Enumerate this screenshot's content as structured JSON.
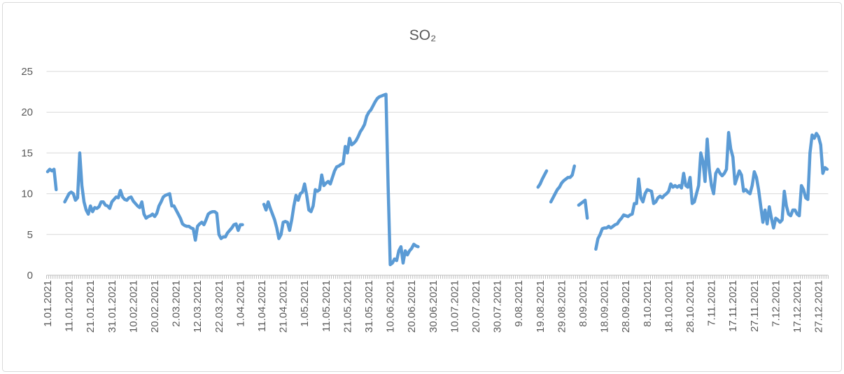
{
  "chart_data": {
    "type": "line",
    "title": "SO₂",
    "categories": [
      "1.01.2021",
      null,
      null,
      null,
      null,
      null,
      null,
      null,
      null,
      null,
      "11.01.2021",
      null,
      null,
      null,
      null,
      null,
      null,
      null,
      null,
      null,
      "21.01.2021",
      null,
      null,
      null,
      null,
      null,
      null,
      null,
      null,
      null,
      "31.01.2021",
      null,
      null,
      null,
      null,
      null,
      null,
      null,
      null,
      null,
      "10.02.2021",
      null,
      null,
      null,
      null,
      null,
      null,
      null,
      null,
      null,
      "20.02.2021",
      null,
      null,
      null,
      null,
      null,
      null,
      null,
      null,
      null,
      "2.03.2021",
      null,
      null,
      null,
      null,
      null,
      null,
      null,
      null,
      null,
      "12.03.2021",
      null,
      null,
      null,
      null,
      null,
      null,
      null,
      null,
      null,
      "22.03.2021",
      null,
      null,
      null,
      null,
      null,
      null,
      null,
      null,
      null,
      "1.04.2021",
      null,
      null,
      null,
      null,
      null,
      null,
      null,
      null,
      null,
      "11.04.2021",
      null,
      null,
      null,
      null,
      null,
      null,
      null,
      null,
      null,
      "21.04.2021",
      null,
      null,
      null,
      null,
      null,
      null,
      null,
      null,
      null,
      "1.05.2021",
      null,
      null,
      null,
      null,
      null,
      null,
      null,
      null,
      null,
      "11.05.2021",
      null,
      null,
      null,
      null,
      null,
      null,
      null,
      null,
      null,
      "21.05.2021",
      null,
      null,
      null,
      null,
      null,
      null,
      null,
      null,
      null,
      "31.05.2021",
      null,
      null,
      null,
      null,
      null,
      null,
      null,
      null,
      null,
      "10.06.2021",
      null,
      null,
      null,
      null,
      null,
      null,
      null,
      null,
      null,
      "20.06.2021",
      null,
      null,
      null,
      null,
      null,
      null,
      null,
      null,
      null,
      "30.06.2021",
      null,
      null,
      null,
      null,
      null,
      null,
      null,
      null,
      null,
      "10.07.2021",
      null,
      null,
      null,
      null,
      null,
      null,
      null,
      null,
      null,
      "20.07.2021",
      null,
      null,
      null,
      null,
      null,
      null,
      null,
      null,
      null,
      "30.07.2021",
      null,
      null,
      null,
      null,
      null,
      null,
      null,
      null,
      null,
      "9.08.2021",
      null,
      null,
      null,
      null,
      null,
      null,
      null,
      null,
      null,
      "19.08.2021",
      null,
      null,
      null,
      null,
      null,
      null,
      null,
      null,
      null,
      "29.08.2021",
      null,
      null,
      null,
      null,
      null,
      null,
      null,
      null,
      null,
      "8.09.2021",
      null,
      null,
      null,
      null,
      null,
      null,
      null,
      null,
      null,
      "18.09.2021",
      null,
      null,
      null,
      null,
      null,
      null,
      null,
      null,
      null,
      "28.09.2021",
      null,
      null,
      null,
      null,
      null,
      null,
      null,
      null,
      null,
      "8.10.2021",
      null,
      null,
      null,
      null,
      null,
      null,
      null,
      null,
      null,
      "18.10.2021",
      null,
      null,
      null,
      null,
      null,
      null,
      null,
      null,
      null,
      "28.10.2021",
      null,
      null,
      null,
      null,
      null,
      null,
      null,
      null,
      null,
      "7.11.2021",
      null,
      null,
      null,
      null,
      null,
      null,
      null,
      null,
      null,
      "17.11.2021",
      null,
      null,
      null,
      null,
      null,
      null,
      null,
      null,
      null,
      "27.11.2021",
      null,
      null,
      null,
      null,
      null,
      null,
      null,
      null,
      null,
      "7.12.2021",
      null,
      null,
      null,
      null,
      null,
      null,
      null,
      null,
      null,
      "17.12.2021",
      null,
      null,
      null,
      null,
      null,
      null,
      null,
      null,
      null,
      "27.12.2021",
      null,
      null,
      null,
      null
    ],
    "values": [
      12.7,
      13,
      12.8,
      13,
      10.5,
      null,
      null,
      null,
      9,
      9.5,
      10,
      10.2,
      10,
      9.2,
      9.5,
      15,
      11,
      9,
      8,
      7.5,
      8.5,
      7.8,
      8.3,
      8.2,
      8.4,
      9,
      9,
      8.6,
      8.5,
      8.2,
      9,
      9.3,
      9.6,
      9.5,
      10.4,
      9.6,
      9.3,
      9.2,
      9.5,
      9.6,
      9.1,
      8.8,
      8.5,
      8.3,
      9,
      7.5,
      7,
      7.2,
      7.3,
      7.5,
      7.2,
      7.6,
      8.5,
      9,
      9.6,
      9.8,
      9.9,
      10,
      8.5,
      8.5,
      8,
      7.5,
      7,
      6.3,
      6.1,
      6,
      6,
      5.8,
      5.7,
      4.3,
      6,
      6.3,
      6.5,
      6.2,
      6.8,
      7.5,
      7.7,
      7.8,
      7.8,
      7.6,
      5,
      4.5,
      4.7,
      4.7,
      5.2,
      5.5,
      5.8,
      6.2,
      6.3,
      5.5,
      6.2,
      6.2,
      null,
      null,
      null,
      null,
      null,
      null,
      null,
      null,
      null,
      8.7,
      8,
      9,
      8.2,
      7.5,
      6.8,
      5.8,
      4.5,
      5,
      6.5,
      6.6,
      6.5,
      5.5,
      6.8,
      8.5,
      9.8,
      9.2,
      10,
      10.2,
      11.2,
      9.8,
      8,
      7.8,
      8.5,
      10.5,
      10.3,
      10.5,
      12.3,
      11,
      11.3,
      11.5,
      11.2,
      12,
      12.8,
      13.3,
      13.4,
      13.6,
      13.7,
      15.8,
      15,
      16.8,
      16,
      16.2,
      16.5,
      17,
      17.6,
      18,
      18.5,
      19.5,
      20,
      20.3,
      20.8,
      21.3,
      21.7,
      21.9,
      22,
      22.1,
      22.2,
      11,
      1.3,
      1.5,
      2,
      1.8,
      3,
      3.5,
      1.5,
      3,
      2.5,
      3,
      3.3,
      3.8,
      3.6,
      3.5,
      null,
      null,
      null,
      null,
      null,
      null,
      null,
      null,
      null,
      null,
      null,
      null,
      null,
      null,
      null,
      null,
      null,
      null,
      null,
      null,
      null,
      null,
      null,
      null,
      null,
      null,
      null,
      null,
      null,
      null,
      null,
      null,
      null,
      null,
      null,
      null,
      null,
      null,
      null,
      null,
      null,
      null,
      null,
      null,
      null,
      null,
      null,
      null,
      null,
      null,
      null,
      null,
      null,
      null,
      null,
      10.8,
      11.2,
      11.8,
      12.3,
      12.8,
      null,
      9,
      9.5,
      10,
      10.5,
      10.8,
      11.3,
      11.6,
      11.8,
      12,
      12,
      12.3,
      13.4,
      null,
      8.6,
      8.8,
      9,
      9.2,
      7,
      null,
      null,
      null,
      3.2,
      4.5,
      5,
      5.7,
      5.8,
      5.8,
      6,
      5.8,
      6,
      6.2,
      6.3,
      6.7,
      7,
      7.4,
      7.3,
      7.2,
      7.4,
      7.5,
      8.8,
      8.8,
      11.8,
      9.5,
      9,
      10,
      10.5,
      10.4,
      10.3,
      8.8,
      9,
      9.5,
      9.7,
      9.5,
      9.8,
      10,
      10.3,
      11.2,
      10.8,
      11,
      10.8,
      11,
      10.7,
      12.5,
      11,
      10.8,
      12,
      8.8,
      9,
      10,
      11,
      15,
      14,
      11.5,
      16.7,
      13,
      11,
      10,
      12.5,
      13,
      12.5,
      12.2,
      12.5,
      13,
      17.5,
      15.5,
      14.5,
      11.2,
      12,
      12.8,
      12.3,
      10.3,
      10.5,
      10.2,
      10,
      11,
      12.7,
      12,
      10.5,
      8.5,
      6.5,
      8,
      6.3,
      8.4,
      7,
      5.8,
      7,
      6.8,
      6.5,
      6.8,
      10.3,
      8.5,
      7.5,
      7.3,
      8,
      8,
      7.5,
      7.3,
      11,
      10.5,
      9.5,
      9.3,
      15,
      17.2,
      16.8,
      17.4,
      17,
      16,
      12.5,
      13.2,
      13
    ],
    "color": "#5b9bd5",
    "ylim": [
      0,
      25
    ],
    "yticks": [
      0,
      5,
      10,
      15,
      20,
      25
    ],
    "grid": true
  }
}
